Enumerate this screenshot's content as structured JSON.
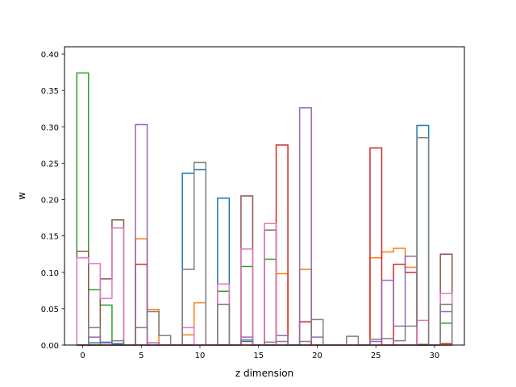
{
  "chart_data": {
    "type": "step",
    "title": "",
    "xlabel": "z dimension",
    "ylabel": "w",
    "xlim": [
      -1.55,
      32.55
    ],
    "ylim": [
      0,
      0.41
    ],
    "xticks": [
      0,
      5,
      10,
      15,
      20,
      25,
      30
    ],
    "yticks": [
      0.0,
      0.05,
      0.1,
      0.15,
      0.2,
      0.25,
      0.3,
      0.35,
      0.4
    ],
    "xtick_labels": [
      "0",
      "5",
      "10",
      "15",
      "20",
      "25",
      "30"
    ],
    "ytick_labels": [
      "0.00",
      "0.05",
      "0.10",
      "0.15",
      "0.20",
      "0.25",
      "0.30",
      "0.35",
      "0.40"
    ],
    "x": [
      0,
      1,
      2,
      3,
      4,
      5,
      6,
      7,
      8,
      9,
      10,
      11,
      12,
      13,
      14,
      15,
      16,
      17,
      18,
      19,
      20,
      21,
      22,
      23,
      24,
      25,
      26,
      27,
      28,
      29,
      30,
      31
    ],
    "series": [
      {
        "color": "#1f77b4",
        "values": [
          0.0,
          0.003,
          0.003,
          0.002,
          0.0,
          0.0,
          0.0,
          0.0,
          0.0,
          0.236,
          0.241,
          0.0,
          0.202,
          0.0,
          0.005,
          0.0,
          0.0,
          0.0,
          0.0,
          0.0,
          0.0,
          0.0,
          0.0,
          0.0,
          0.0,
          0.0,
          0.0,
          0.0,
          0.0,
          0.302,
          0.0,
          0.0
        ]
      },
      {
        "color": "#ff7f0e",
        "values": [
          0.0,
          0.0,
          0.0,
          0.0,
          0.0,
          0.146,
          0.049,
          0.0,
          0.0,
          0.014,
          0.058,
          0.0,
          0.0,
          0.0,
          0.0,
          0.0,
          0.0,
          0.098,
          0.0,
          0.104,
          0.0,
          0.0,
          0.0,
          0.0,
          0.0,
          0.12,
          0.128,
          0.133,
          0.107,
          0.0,
          0.0,
          0.0
        ]
      },
      {
        "color": "#2ca02c",
        "values": [
          0.374,
          0.076,
          0.055,
          0.0,
          0.0,
          0.0,
          0.0,
          0.0,
          0.0,
          0.0,
          0.0,
          0.0,
          0.074,
          0.0,
          0.108,
          0.0,
          0.118,
          0.0,
          0.0,
          0.0,
          0.0,
          0.0,
          0.0,
          0.0,
          0.0,
          0.0,
          0.0,
          0.0,
          0.0,
          0.001,
          0.0,
          0.03
        ]
      },
      {
        "color": "#d62728",
        "values": [
          0.0,
          0.0,
          0.0,
          0.0,
          0.0,
          0.111,
          0.0,
          0.0,
          0.0,
          0.0,
          0.0,
          0.0,
          0.0,
          0.0,
          0.0,
          0.0,
          0.0,
          0.275,
          0.0,
          0.032,
          0.0,
          0.0,
          0.0,
          0.0,
          0.0,
          0.271,
          0.0,
          0.111,
          0.1,
          0.0,
          0.0,
          0.002
        ]
      },
      {
        "color": "#9467bd",
        "values": [
          0.0,
          0.011,
          0.004,
          0.0,
          0.0,
          0.303,
          0.003,
          0.0,
          0.0,
          0.0,
          0.0,
          0.0,
          0.0,
          0.0,
          0.011,
          0.0,
          0.0,
          0.013,
          0.0,
          0.326,
          0.011,
          0.0,
          0.0,
          0.0,
          0.0,
          0.005,
          0.089,
          0.026,
          0.122,
          0.0,
          0.0,
          0.046
        ]
      },
      {
        "color": "#8c564b",
        "values": [
          0.129,
          0.0,
          0.091,
          0.172,
          0.0,
          0.0,
          0.0,
          0.0,
          0.0,
          0.0,
          0.0,
          0.0,
          0.0,
          0.0,
          0.205,
          0.0,
          0.158,
          0.0,
          0.0,
          0.0,
          0.0,
          0.0,
          0.0,
          0.0,
          0.0,
          0.0,
          0.0,
          0.0,
          0.0,
          0.0,
          0.0,
          0.125
        ]
      },
      {
        "color": "#e377c2",
        "values": [
          0.12,
          0.112,
          0.064,
          0.161,
          0.0,
          0.0,
          0.0,
          0.0,
          0.0,
          0.024,
          0.0,
          0.0,
          0.084,
          0.0,
          0.132,
          0.0,
          0.167,
          0.0,
          0.0,
          0.0,
          0.0,
          0.0,
          0.0,
          0.0,
          0.0,
          0.0,
          0.0,
          0.0,
          0.0,
          0.034,
          0.0,
          0.071
        ]
      },
      {
        "color": "#7f7f7f",
        "values": [
          0.0,
          0.024,
          0.0,
          0.006,
          0.0,
          0.024,
          0.046,
          0.013,
          0.0,
          0.104,
          0.251,
          0.0,
          0.056,
          0.0,
          0.007,
          0.0,
          0.004,
          0.005,
          0.0,
          0.005,
          0.035,
          0.0,
          0.0,
          0.012,
          0.0,
          0.008,
          0.009,
          0.006,
          0.026,
          0.285,
          0.0,
          0.056
        ]
      }
    ]
  }
}
